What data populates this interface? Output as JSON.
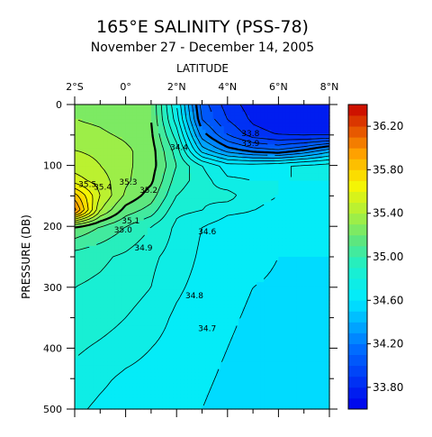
{
  "chart_data": {
    "type": "heatmap",
    "title": "165°E SALINITY (PSS-78)",
    "subtitle": "November 27 - December 14, 2005",
    "xlabel": "LATITUDE",
    "ylabel": "PRESSURE (DB)",
    "x_ticks": [
      "2°S",
      "0°",
      "2°N",
      "4°N",
      "6°N",
      "8°N"
    ],
    "x_tick_values": [
      -2,
      0,
      2,
      4,
      6,
      8
    ],
    "xlim": [
      -2,
      8
    ],
    "y_ticks": [
      "0",
      "100",
      "200",
      "300",
      "400",
      "500"
    ],
    "y_tick_values": [
      0,
      100,
      200,
      300,
      400,
      500
    ],
    "ylim": [
      0,
      500
    ],
    "y_inverted": true,
    "colorbar": {
      "ticks": [
        "36.20",
        "35.80",
        "35.40",
        "35.00",
        "34.60",
        "34.20",
        "33.80"
      ],
      "tick_values": [
        36.2,
        35.8,
        35.4,
        35.0,
        34.6,
        34.2,
        33.8
      ],
      "range": [
        33.6,
        36.4
      ],
      "step": 0.1
    },
    "contour_labels": [
      {
        "text": "33.8",
        "lat": 4.9,
        "p": 52
      },
      {
        "text": "33.9",
        "lat": 4.9,
        "p": 68
      },
      {
        "text": "34.4",
        "lat": 2.1,
        "p": 75
      },
      {
        "text": "35.5",
        "lat": -1.5,
        "p": 135
      },
      {
        "text": "35.4",
        "lat": -0.9,
        "p": 140
      },
      {
        "text": "35.3",
        "lat": 0.1,
        "p": 132
      },
      {
        "text": "35.2",
        "lat": 0.9,
        "p": 145
      },
      {
        "text": "35.1",
        "lat": 0.2,
        "p": 195
      },
      {
        "text": "35.0",
        "lat": -0.1,
        "p": 210
      },
      {
        "text": "34.6",
        "lat": 3.2,
        "p": 213
      },
      {
        "text": "34.9",
        "lat": 0.7,
        "p": 240
      },
      {
        "text": "34.8",
        "lat": 2.7,
        "p": 318
      },
      {
        "text": "34.7",
        "lat": 3.2,
        "p": 372
      }
    ],
    "field_grid": {
      "lat": [
        -2,
        -1,
        0,
        1,
        2,
        3,
        4,
        5,
        6,
        7,
        8
      ],
      "pressure": [
        0,
        25,
        50,
        75,
        100,
        125,
        150,
        175,
        200,
        250,
        300,
        350,
        400,
        450,
        500
      ],
      "salinity": [
        [
          35.3,
          35.28,
          35.24,
          35.2,
          34.7,
          34.05,
          33.85,
          33.75,
          33.7,
          33.7,
          33.7
        ],
        [
          35.3,
          35.28,
          35.24,
          35.2,
          34.75,
          34.1,
          33.9,
          33.78,
          33.72,
          33.72,
          33.72
        ],
        [
          35.35,
          35.32,
          35.28,
          35.22,
          34.85,
          34.25,
          34.0,
          33.85,
          33.8,
          33.78,
          33.78
        ],
        [
          35.4,
          35.38,
          35.32,
          35.25,
          34.95,
          34.45,
          34.25,
          34.15,
          34.1,
          34.2,
          34.35
        ],
        [
          35.45,
          35.4,
          35.32,
          35.25,
          35.0,
          34.8,
          34.65,
          34.65,
          34.68,
          34.72,
          34.75
        ],
        [
          35.55,
          35.45,
          35.32,
          35.22,
          34.95,
          34.85,
          34.72,
          34.7,
          34.7,
          34.7,
          34.7
        ],
        [
          35.85,
          35.5,
          35.28,
          35.15,
          34.9,
          34.82,
          34.85,
          34.72,
          34.7,
          34.68,
          34.68
        ],
        [
          36.05,
          35.4,
          35.15,
          35.05,
          34.82,
          34.8,
          34.72,
          34.7,
          34.68,
          34.66,
          34.66
        ],
        [
          35.2,
          35.1,
          35.0,
          34.9,
          34.78,
          34.7,
          34.65,
          34.64,
          34.62,
          34.61,
          34.6
        ],
        [
          34.95,
          34.92,
          34.88,
          34.82,
          34.76,
          34.68,
          34.63,
          34.62,
          34.6,
          34.6,
          34.6
        ],
        [
          34.9,
          34.88,
          34.85,
          34.8,
          34.72,
          34.66,
          34.62,
          34.6,
          34.59,
          34.59,
          34.59
        ],
        [
          34.88,
          34.85,
          34.8,
          34.75,
          34.68,
          34.64,
          34.61,
          34.59,
          34.58,
          34.58,
          34.58
        ],
        [
          34.82,
          34.78,
          34.74,
          34.7,
          34.66,
          34.62,
          34.6,
          34.58,
          34.57,
          34.57,
          34.57
        ],
        [
          34.76,
          34.72,
          34.68,
          34.66,
          34.64,
          34.61,
          34.59,
          34.57,
          34.56,
          34.56,
          34.56
        ],
        [
          34.72,
          34.68,
          34.65,
          34.63,
          34.62,
          34.6,
          34.58,
          34.56,
          34.55,
          34.55,
          34.55
        ]
      ]
    }
  }
}
